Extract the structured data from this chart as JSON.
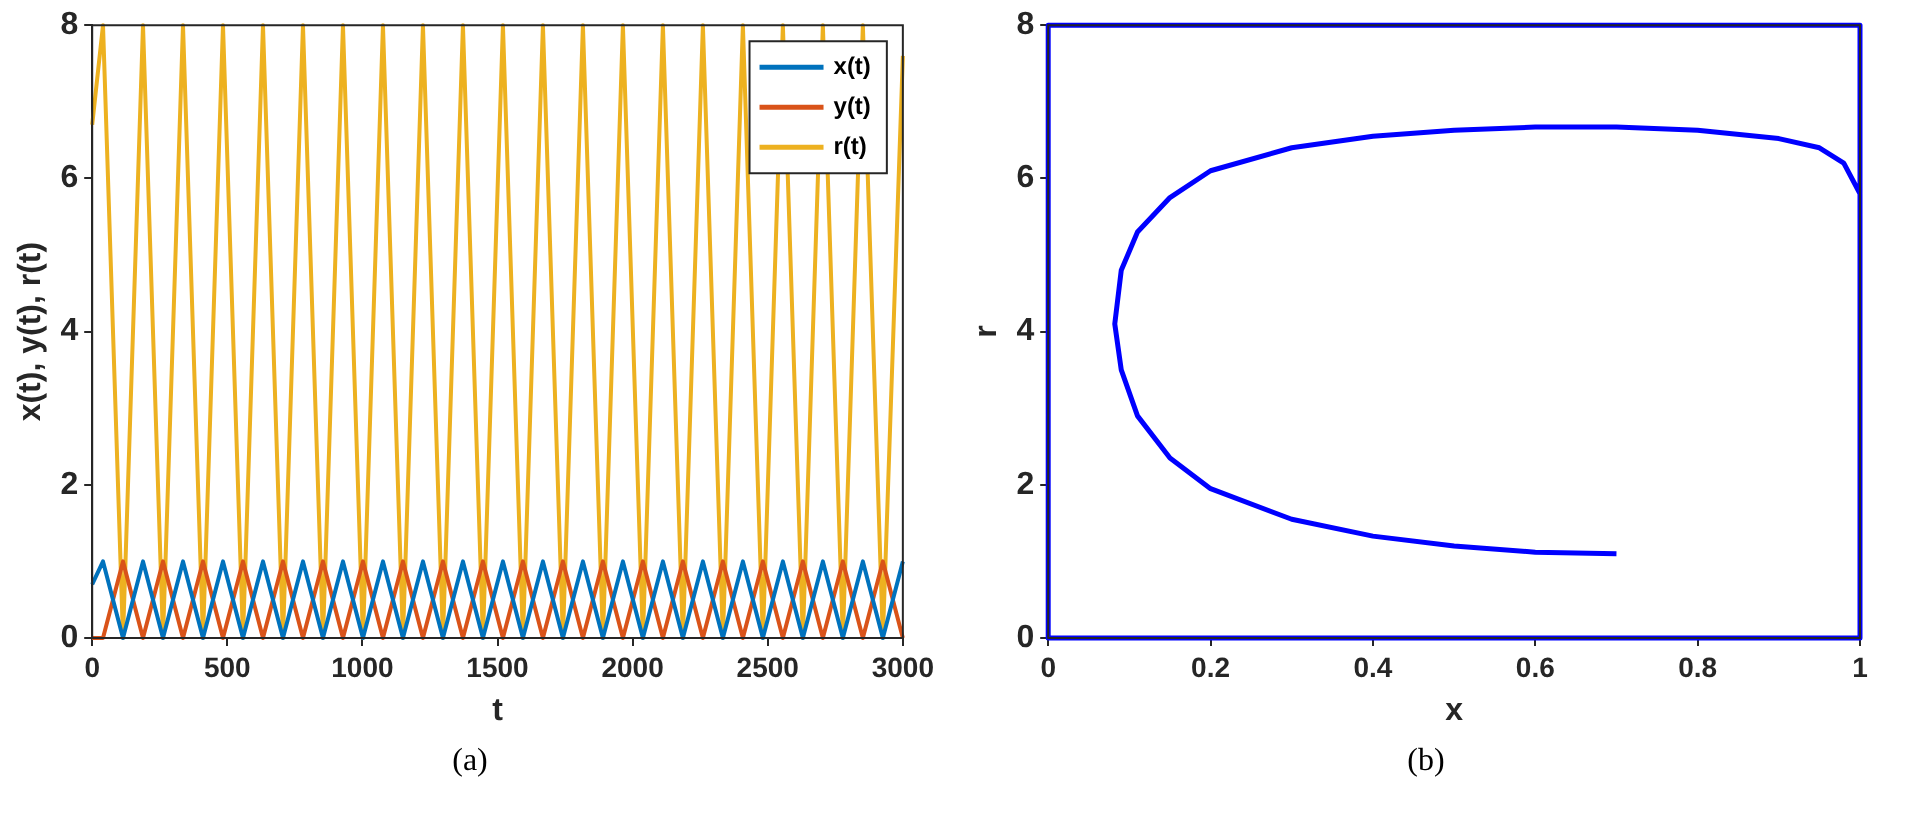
{
  "chart_data": [
    {
      "type": "line",
      "xlabel": "t",
      "ylabel": "x(t), y(t), r(t)",
      "x": [
        0,
        40,
        114,
        188,
        262,
        336,
        410,
        484,
        558,
        632,
        706,
        780,
        854,
        928,
        1002,
        1076,
        1150,
        1224,
        1298,
        1372,
        1446,
        1520,
        1594,
        1668,
        1742,
        1816,
        1890,
        1964,
        2038,
        2112,
        2186,
        2260,
        2334,
        2408,
        2482,
        2556,
        2630,
        2704,
        2778,
        2852,
        2926,
        3000
      ],
      "series": [
        {
          "name": "x(t)",
          "color": "#0072bd",
          "values": [
            0.7,
            1,
            0,
            1,
            0,
            1,
            0,
            1,
            0,
            1,
            0,
            1,
            0,
            1,
            0,
            1,
            0,
            1,
            0,
            1,
            0,
            1,
            0,
            1,
            0,
            1,
            0,
            1,
            0,
            1,
            0,
            1,
            0,
            1,
            0,
            1,
            0,
            1,
            0,
            1,
            0,
            1
          ]
        },
        {
          "name": "y(t)",
          "color": "#d95319",
          "values": [
            0,
            0,
            1,
            0,
            1,
            0,
            1,
            0,
            1,
            0,
            1,
            0,
            1,
            0,
            1,
            0,
            1,
            0,
            1,
            0,
            1,
            0,
            1,
            0,
            1,
            0,
            1,
            0,
            1,
            0,
            1,
            0,
            1,
            0,
            1,
            0,
            1,
            0,
            1,
            0,
            1,
            0
          ]
        },
        {
          "name": "r(t)",
          "color": "#edb120",
          "values": [
            6.7,
            8,
            0,
            8,
            0,
            8,
            0,
            8,
            0,
            8,
            0,
            8,
            0,
            8,
            0,
            8,
            0,
            8,
            0,
            8,
            0,
            8,
            0,
            8,
            0,
            8,
            0,
            8,
            0,
            8,
            0,
            8,
            0,
            8,
            0,
            8,
            0,
            8,
            0,
            8,
            0,
            7.6
          ]
        }
      ],
      "xlim": [
        0,
        3000
      ],
      "xticks": [
        0,
        500,
        1000,
        1500,
        2000,
        2500,
        3000
      ],
      "ylim": [
        0,
        8
      ],
      "yticks": [
        0,
        2,
        4,
        6,
        8
      ],
      "grid": false,
      "legend": "top right",
      "annotations": [
        "(a)"
      ]
    },
    {
      "type": "line",
      "xlabel": "x",
      "ylabel": "r",
      "x": [
        0.7,
        0.6,
        0.5,
        0.4,
        0.3,
        0.2,
        0.15,
        0.11,
        0.09,
        0.082,
        0.09,
        0.11,
        0.15,
        0.2,
        0.3,
        0.4,
        0.5,
        0.6,
        0.7,
        0.8,
        0.9,
        0.95,
        0.98,
        1,
        1,
        0,
        0,
        1,
        1
      ],
      "series": [
        {
          "color": "#0000ff",
          "values": [
            1.1,
            1.12,
            1.2,
            1.33,
            1.55,
            1.95,
            2.35,
            2.9,
            3.5,
            4.1,
            4.8,
            5.3,
            5.75,
            6.1,
            6.4,
            6.55,
            6.63,
            6.67,
            6.67,
            6.63,
            6.52,
            6.4,
            6.2,
            5.8,
            8,
            8,
            0,
            0,
            8
          ]
        }
      ],
      "xlim": [
        0,
        1
      ],
      "xticks": [
        0,
        0.2,
        0.4,
        0.6,
        0.8,
        1
      ],
      "ylim": [
        0,
        8
      ],
      "yticks": [
        0,
        2,
        4,
        6,
        8
      ],
      "grid": false,
      "annotations": [
        "(b)"
      ]
    }
  ]
}
